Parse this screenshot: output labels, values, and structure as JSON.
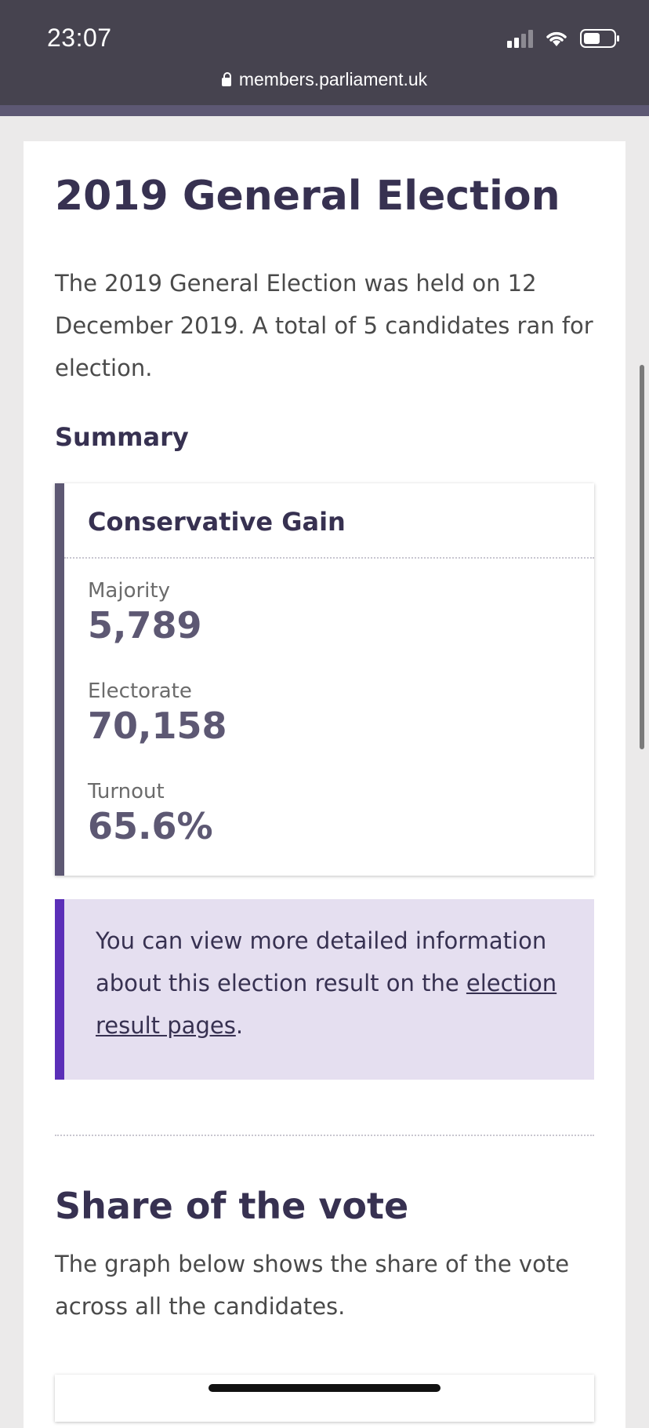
{
  "status_bar": {
    "time": "23:07",
    "url": "members.parliament.uk"
  },
  "election": {
    "title": "2019 General Election",
    "intro": "The 2019 General Election was held on 12 December 2019. A total of 5 candidates ran for election."
  },
  "summary": {
    "heading": "Summary",
    "result": "Conservative Gain",
    "stats": [
      {
        "label": "Majority",
        "value": "5,789"
      },
      {
        "label": "Electorate",
        "value": "70,158"
      },
      {
        "label": "Turnout",
        "value": "65.6%"
      }
    ]
  },
  "info": {
    "text_before": "You can view more detailed information about this election result on the ",
    "link": "election result pages",
    "text_after": "."
  },
  "share": {
    "title": "Share of the vote",
    "description": "The graph below shows the share of the vote across all the candidates."
  }
}
